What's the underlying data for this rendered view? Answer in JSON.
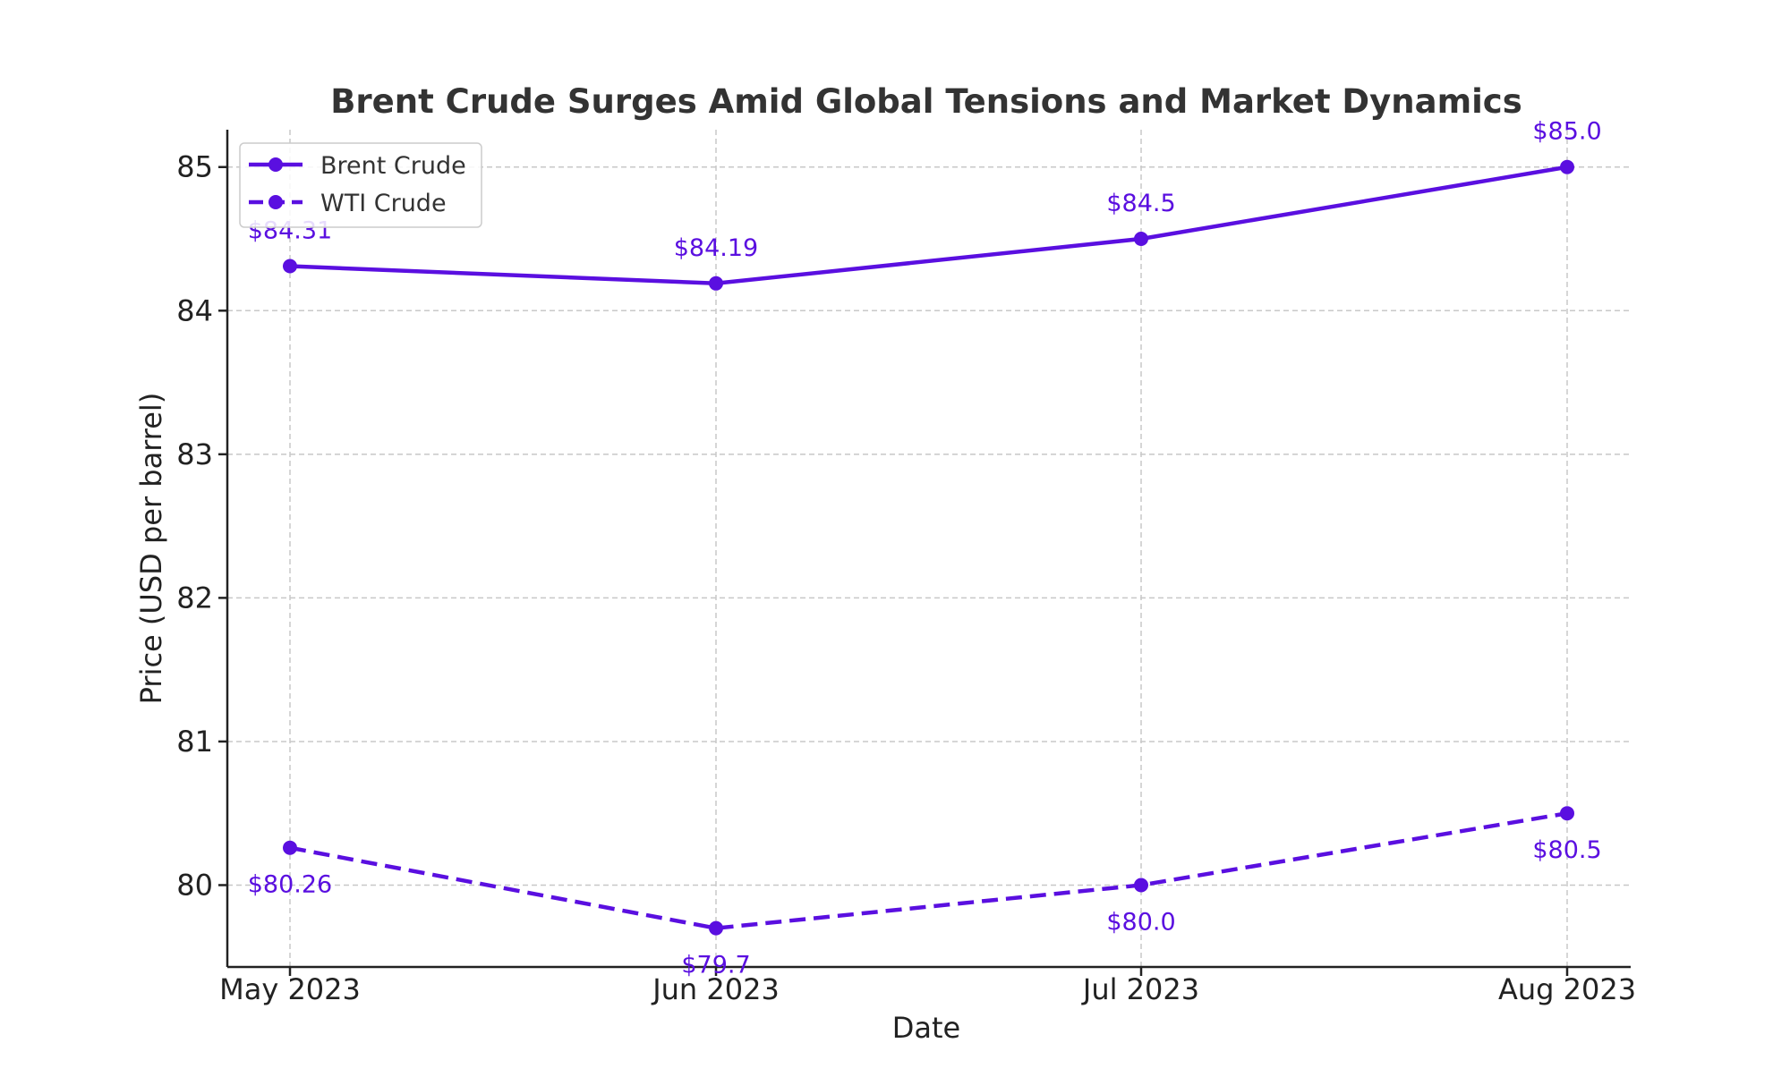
{
  "chart_data": {
    "type": "line",
    "title": "Brent Crude Surges Amid Global Tensions and Market Dynamics",
    "xlabel": "Date",
    "ylabel": "Price (USD per barrel)",
    "categories": [
      "May 2023",
      "Jun 2023",
      "Jul 2023",
      "Aug 2023"
    ],
    "yticks": [
      "80",
      "81",
      "82",
      "83",
      "84",
      "85"
    ],
    "ylim": [
      79.43,
      85.26
    ],
    "grid": true,
    "legend_position": "top-left",
    "series": [
      {
        "name": "Brent Crude",
        "values": [
          84.31,
          84.19,
          84.5,
          85.0
        ],
        "labels": [
          "$84.31",
          "$84.19",
          "$84.5",
          "$85.0"
        ],
        "line_style": "solid",
        "label_position": "above",
        "color": "#5a0fe0"
      },
      {
        "name": "WTI Crude",
        "values": [
          80.26,
          79.7,
          80.0,
          80.5
        ],
        "labels": [
          "$80.26",
          "$79.7",
          "$80.0",
          "$80.5"
        ],
        "line_style": "dashed",
        "label_position": "below",
        "color": "#5a0fe0"
      }
    ]
  }
}
